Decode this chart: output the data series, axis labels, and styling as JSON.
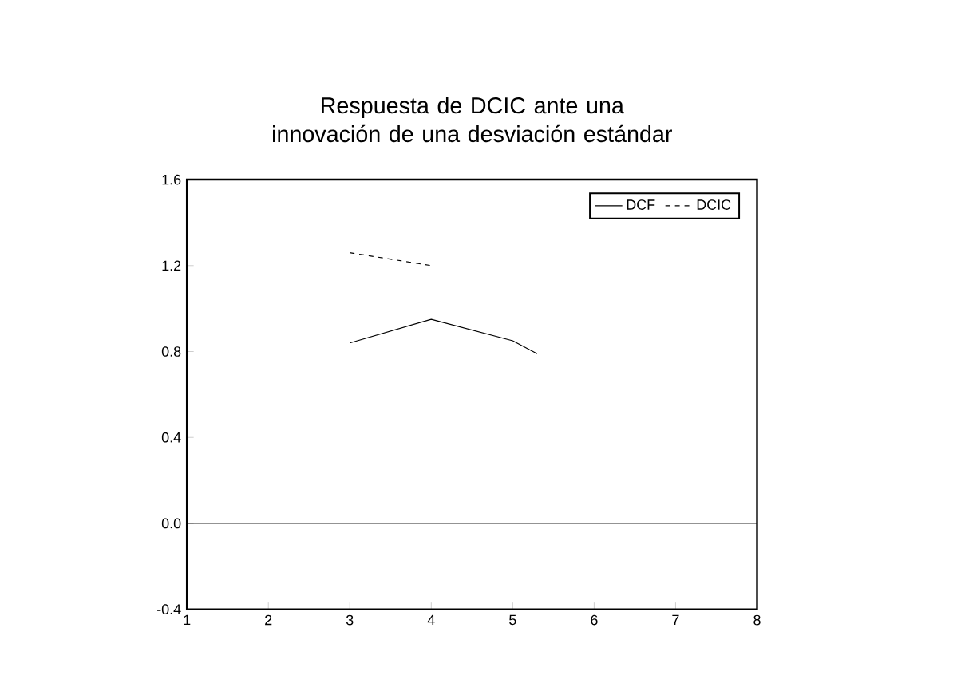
{
  "chart_data": {
    "type": "line",
    "title": "Respuesta de DCIC ante una innovación de una desviación estándar",
    "series": [
      {
        "name": "DCF",
        "color": "#000000",
        "line_style": "solid",
        "x": [
          3,
          4,
          5,
          5.3
        ],
        "values": [
          0.84,
          0.95,
          0.85,
          0.79
        ]
      },
      {
        "name": "DCIC",
        "color": "#000000",
        "line_style": "dashed",
        "x": [
          3,
          4
        ],
        "values": [
          1.26,
          1.2
        ]
      }
    ],
    "xlim": [
      1,
      8
    ],
    "xticks": [
      1,
      2,
      3,
      4,
      5,
      6,
      7,
      8
    ],
    "ylim": [
      -0.4,
      1.6
    ],
    "yticks": [
      {
        "value": -0.4,
        "label": "-0.4"
      },
      {
        "value": 0,
        "label": "0.0"
      },
      {
        "value": 0.4,
        "label": "0.4"
      },
      {
        "value": 0.8,
        "label": "0.8"
      },
      {
        "value": 1.2,
        "label": "1.2"
      },
      {
        "value": 1.6,
        "label": "1.6"
      }
    ],
    "ref_lines": [
      {
        "axis": "y",
        "value": 0,
        "color": "#000000"
      }
    ],
    "legend": "top right",
    "grid": false,
    "marker": "none"
  }
}
